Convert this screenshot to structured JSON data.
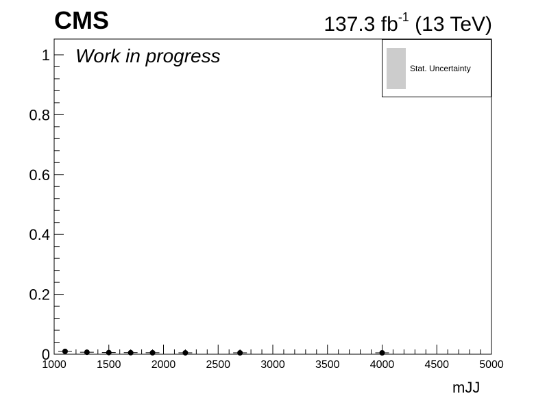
{
  "header": {
    "experiment": "CMS",
    "lumi_value": "137.3 fb",
    "lumi_exp": "-1",
    "lumi_energy": " (13 TeV)",
    "status": "Work in progress"
  },
  "legend": {
    "entries": [
      {
        "label": "Stat. Uncertainty",
        "color": "#cccccc"
      }
    ]
  },
  "chart_data": {
    "type": "scatter",
    "title": "",
    "xlabel": "mJJ",
    "ylabel": "",
    "xlim": [
      1000,
      5000
    ],
    "ylim": [
      0,
      1.05
    ],
    "x_ticks": [
      1000,
      1500,
      2000,
      2500,
      3000,
      3500,
      4000,
      4500,
      5000
    ],
    "x_tick_labels": [
      "1000",
      "1500",
      "2000",
      "2500",
      "3000",
      "3500",
      "4000",
      "4500",
      "5000"
    ],
    "y_ticks": [
      0,
      0.2,
      0.4,
      0.6,
      0.8,
      1
    ],
    "y_tick_labels": [
      "0",
      "0.2",
      "0.4",
      "0.6",
      "0.8",
      "1"
    ],
    "grid": false,
    "legend_position": "top-right",
    "series": [
      {
        "name": "",
        "x": [
          1100,
          1300,
          1500,
          1700,
          1900,
          2200,
          2700,
          4000
        ],
        "y": [
          0.005,
          0.002,
          0.001,
          0.0005,
          0.0003,
          0.0001,
          0.0,
          0.0
        ]
      }
    ]
  }
}
